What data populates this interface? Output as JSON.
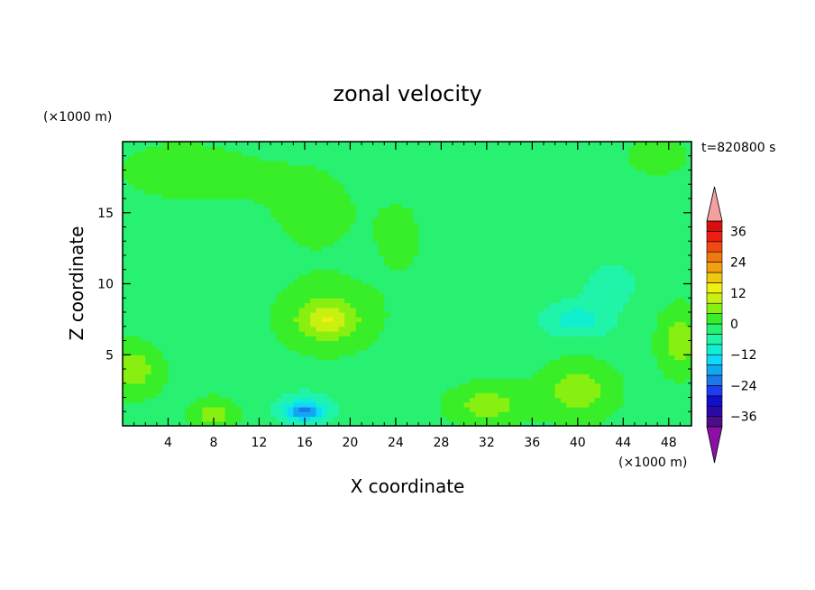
{
  "chart_data": {
    "type": "heatmap",
    "title": "zonal velocity",
    "xlabel": "X coordinate",
    "ylabel": "Z coordinate",
    "x_unit": "(×1000 m)",
    "y_unit": "(×1000 m)",
    "time_label": "t=820800 s",
    "xlim": [
      0,
      50
    ],
    "ylim": [
      0,
      20
    ],
    "x_ticks": [
      4,
      8,
      12,
      16,
      20,
      24,
      28,
      32,
      36,
      40,
      44,
      48
    ],
    "y_ticks": [
      5,
      10,
      15
    ],
    "colorbar": {
      "labels": [
        36,
        24,
        12,
        0,
        -12,
        -24,
        -36
      ],
      "min": -40,
      "max": 40,
      "step": 4,
      "colors": [
        "#4a0e8a",
        "#2a0aa8",
        "#1010c8",
        "#1e3cf0",
        "#1c78e8",
        "#10a8f0",
        "#10d8f8",
        "#10f0d0",
        "#20f4a8",
        "#28f070",
        "#38ee28",
        "#88f010",
        "#c8f010",
        "#f0f010",
        "#f0c810",
        "#f0a010",
        "#f07810",
        "#f04a10",
        "#f01e10",
        "#d80e0e"
      ],
      "over_color": "#f4a0a0",
      "under_color": "#8c10a8"
    },
    "field": {
      "description_free": true,
      "background_value": -2,
      "blobs": [
        {
          "x": 5,
          "z": 18,
          "sx": 8,
          "sz": 3,
          "v": 3
        },
        {
          "x": 17,
          "z": 15,
          "sx": 6,
          "sz": 5,
          "v": 2.5
        },
        {
          "x": 25,
          "z": 13,
          "sx": 3,
          "sz": 4,
          "v": 2.5
        },
        {
          "x": 47,
          "z": 19,
          "sx": 4,
          "sz": 2,
          "v": 3
        },
        {
          "x": 18,
          "z": 7.5,
          "sx": 4,
          "sz": 2.2,
          "v": 9
        },
        {
          "x": 18,
          "z": 7.5,
          "sx": 1.5,
          "sz": 0.8,
          "v": 6
        },
        {
          "x": 1,
          "z": 4,
          "sx": 2.5,
          "sz": 2,
          "v": 8
        },
        {
          "x": 8,
          "z": 0.8,
          "sx": 2,
          "sz": 1.2,
          "v": 8
        },
        {
          "x": 32,
          "z": 1.5,
          "sx": 3.5,
          "sz": 1.5,
          "v": 8
        },
        {
          "x": 40,
          "z": 2.5,
          "sx": 3.5,
          "sz": 2.2,
          "v": 8
        },
        {
          "x": 49,
          "z": 6,
          "sx": 2,
          "sz": 2.5,
          "v": 8
        },
        {
          "x": 16,
          "z": 1.2,
          "sx": 2.2,
          "sz": 1.0,
          "v": -12
        },
        {
          "x": 16,
          "z": 1.0,
          "sx": 1.2,
          "sz": 0.5,
          "v": -8
        },
        {
          "x": 40,
          "z": 7.5,
          "sx": 3,
          "sz": 1.2,
          "v": -8
        },
        {
          "x": 43,
          "z": 10,
          "sx": 2.5,
          "sz": 1.5,
          "v": -4
        },
        {
          "x": 33,
          "z": 13,
          "sx": 6,
          "sz": 3,
          "v": -2
        },
        {
          "x": 6,
          "z": 8,
          "sx": 4,
          "sz": 2,
          "v": -2
        }
      ]
    }
  }
}
